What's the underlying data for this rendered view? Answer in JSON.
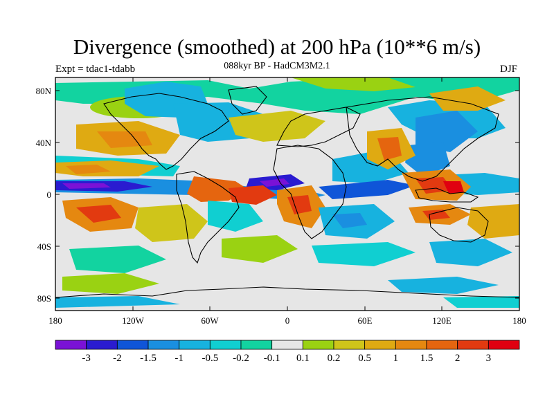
{
  "title": "Divergence (smoothed) at 200 hPa (10**6 m/s)",
  "subtitle": "088kyr BP - HadCM3M2.1",
  "experiment": "Expt = tdac1-tdabb",
  "season": "DJF",
  "axes": {
    "lat_labels": [
      "80N",
      "40N",
      "0",
      "40S",
      "80S"
    ],
    "lat_values": [
      80,
      40,
      0,
      -40,
      -80
    ],
    "lon_labels": [
      "180",
      "120W",
      "60W",
      "0",
      "60E",
      "120E",
      "180"
    ],
    "lon_values": [
      -180,
      -120,
      -60,
      0,
      60,
      120,
      180
    ],
    "lon_range": [
      -180,
      180
    ],
    "lat_range": [
      -90,
      90
    ]
  },
  "colorbar": {
    "labels": [
      "-3",
      "-2",
      "-1.5",
      "-1",
      "-0.5",
      "-0.2",
      "-0.1",
      "0.1",
      "0.2",
      "0.5",
      "1",
      "1.5",
      "2",
      "3"
    ],
    "colors": [
      "#7a12d6",
      "#2a1bd0",
      "#0f55d8",
      "#1a8fe0",
      "#17b2df",
      "#10cfd1",
      "#12d3a0",
      "#e6e6e6",
      "#9ad212",
      "#cfc51a",
      "#dfaa12",
      "#e58810",
      "#e5650f",
      "#e23a10",
      "#e00010"
    ]
  }
}
